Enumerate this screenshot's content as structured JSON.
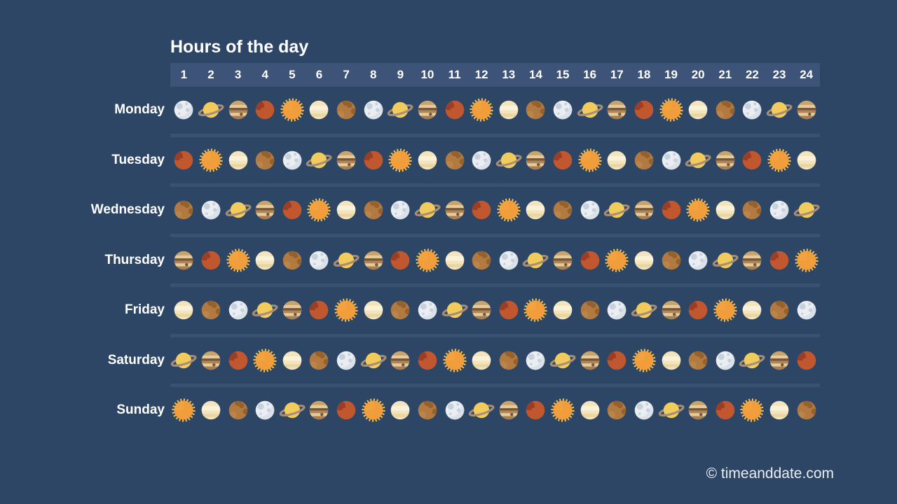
{
  "title": "Hours of the day",
  "footer": {
    "copyright": "© timeanddate.com"
  },
  "colors": {
    "background": "#2D4666",
    "header_bar": "#3D5377",
    "row_divider": "#3B5174",
    "text": "#FFFFFF",
    "footer_text": "#E9EDF3"
  },
  "planet_colors": {
    "sun": "#F29D3B",
    "moon": "#EAEDF1",
    "mercury": "#B27A40",
    "venus": "#F3E4BC",
    "mars": "#C0572F",
    "jupiter": "#C9A36C",
    "saturn": "#F1CB5C"
  },
  "chart_data": {
    "type": "table",
    "title": "Hours of the day",
    "columns": [
      "1",
      "2",
      "3",
      "4",
      "5",
      "6",
      "7",
      "8",
      "9",
      "10",
      "11",
      "12",
      "13",
      "14",
      "15",
      "16",
      "17",
      "18",
      "19",
      "20",
      "21",
      "22",
      "23",
      "24"
    ],
    "rows": [
      {
        "label": "Monday",
        "hours": [
          "moon",
          "saturn",
          "jupiter",
          "mars",
          "sun",
          "venus",
          "mercury",
          "moon",
          "saturn",
          "jupiter",
          "mars",
          "sun",
          "venus",
          "mercury",
          "moon",
          "saturn",
          "jupiter",
          "mars",
          "sun",
          "venus",
          "mercury",
          "moon",
          "saturn",
          "jupiter"
        ]
      },
      {
        "label": "Tuesday",
        "hours": [
          "mars",
          "sun",
          "venus",
          "mercury",
          "moon",
          "saturn",
          "jupiter",
          "mars",
          "sun",
          "venus",
          "mercury",
          "moon",
          "saturn",
          "jupiter",
          "mars",
          "sun",
          "venus",
          "mercury",
          "moon",
          "saturn",
          "jupiter",
          "mars",
          "sun",
          "venus"
        ]
      },
      {
        "label": "Wednesday",
        "hours": [
          "mercury",
          "moon",
          "saturn",
          "jupiter",
          "mars",
          "sun",
          "venus",
          "mercury",
          "moon",
          "saturn",
          "jupiter",
          "mars",
          "sun",
          "venus",
          "mercury",
          "moon",
          "saturn",
          "jupiter",
          "mars",
          "sun",
          "venus",
          "mercury",
          "moon",
          "saturn"
        ]
      },
      {
        "label": "Thursday",
        "hours": [
          "jupiter",
          "mars",
          "sun",
          "venus",
          "mercury",
          "moon",
          "saturn",
          "jupiter",
          "mars",
          "sun",
          "venus",
          "mercury",
          "moon",
          "saturn",
          "jupiter",
          "mars",
          "sun",
          "venus",
          "mercury",
          "moon",
          "saturn",
          "jupiter",
          "mars",
          "sun"
        ]
      },
      {
        "label": "Friday",
        "hours": [
          "venus",
          "mercury",
          "moon",
          "saturn",
          "jupiter",
          "mars",
          "sun",
          "venus",
          "mercury",
          "moon",
          "saturn",
          "jupiter",
          "mars",
          "sun",
          "venus",
          "mercury",
          "moon",
          "saturn",
          "jupiter",
          "mars",
          "sun",
          "venus",
          "mercury",
          "moon"
        ]
      },
      {
        "label": "Saturday",
        "hours": [
          "saturn",
          "jupiter",
          "mars",
          "sun",
          "venus",
          "mercury",
          "moon",
          "saturn",
          "jupiter",
          "mars",
          "sun",
          "venus",
          "mercury",
          "moon",
          "saturn",
          "jupiter",
          "mars",
          "sun",
          "venus",
          "mercury",
          "moon",
          "saturn",
          "jupiter",
          "mars"
        ]
      },
      {
        "label": "Sunday",
        "hours": [
          "sun",
          "venus",
          "mercury",
          "moon",
          "saturn",
          "jupiter",
          "mars",
          "sun",
          "venus",
          "mercury",
          "moon",
          "saturn",
          "jupiter",
          "mars",
          "sun",
          "venus",
          "mercury",
          "moon",
          "saturn",
          "jupiter",
          "mars",
          "sun",
          "venus",
          "mercury"
        ]
      }
    ]
  }
}
